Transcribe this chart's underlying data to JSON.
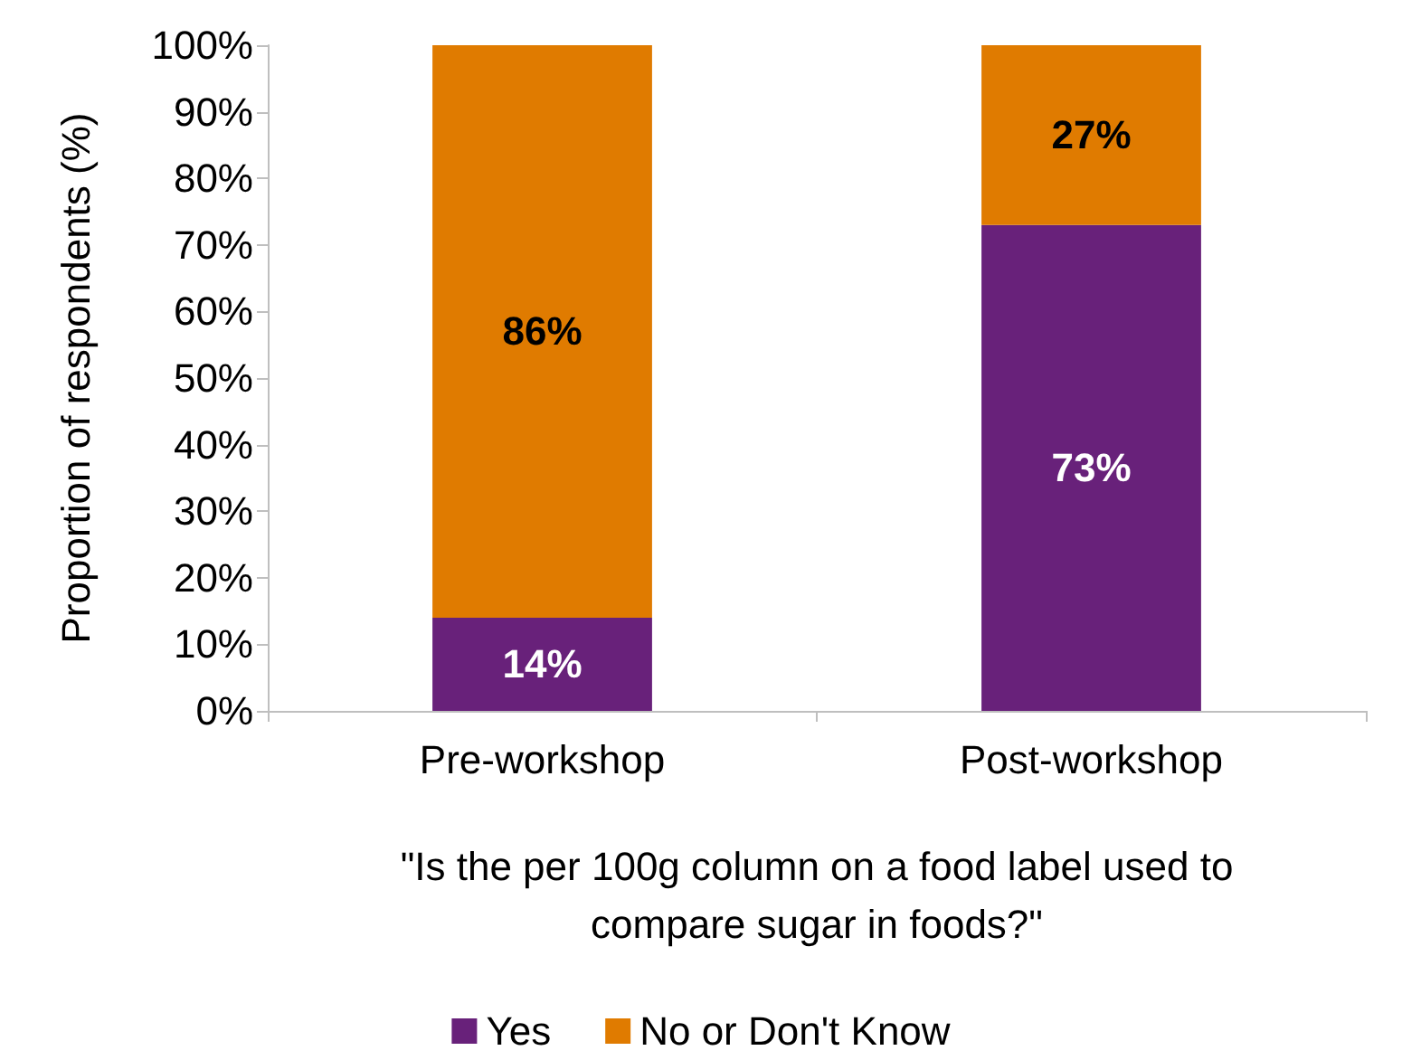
{
  "chart_data": {
    "type": "bar",
    "stacked": true,
    "xlabel": "\"Is the per 100g column on a food label used to\ncompare sugar in foods?\"",
    "ylabel": "Proportion of respondents (%)",
    "categories": [
      "Pre-workshop",
      "Post-workshop"
    ],
    "series": [
      {
        "name": "Yes",
        "color": "#68217a",
        "values": [
          14,
          73
        ],
        "value_labels": [
          "14%",
          "73%"
        ]
      },
      {
        "name": "No or Don't Know",
        "color": "#e07b00",
        "values": [
          86,
          27
        ],
        "value_labels": [
          "86%",
          "27%"
        ]
      }
    ],
    "ylim": [
      0,
      100
    ],
    "yticks": [
      {
        "value": 0,
        "label": "0%"
      },
      {
        "value": 10,
        "label": "10%"
      },
      {
        "value": 20,
        "label": "20%"
      },
      {
        "value": 30,
        "label": "30%"
      },
      {
        "value": 40,
        "label": "40%"
      },
      {
        "value": 50,
        "label": "50%"
      },
      {
        "value": 60,
        "label": "60%"
      },
      {
        "value": 70,
        "label": "70%"
      },
      {
        "value": 80,
        "label": "80%"
      },
      {
        "value": 90,
        "label": "90%"
      },
      {
        "value": 100,
        "label": "100%"
      }
    ],
    "grid": false,
    "legend": "bottom"
  }
}
